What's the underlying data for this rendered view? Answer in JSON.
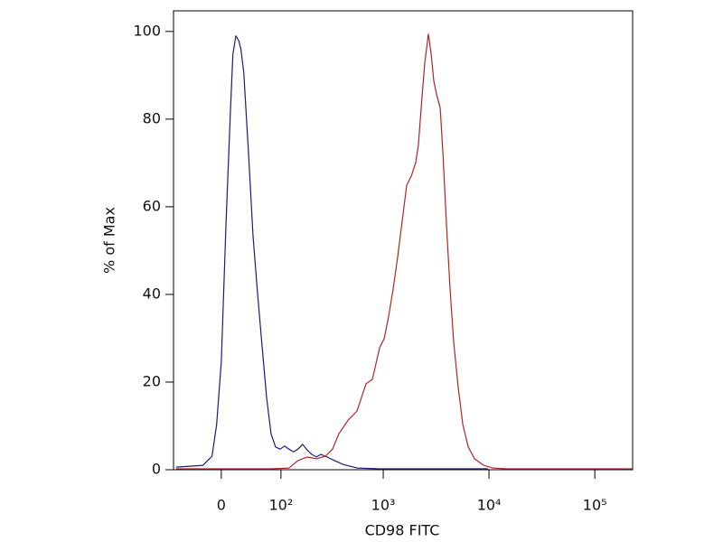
{
  "chart_data": {
    "type": "line",
    "xlabel": "CD98 FITC",
    "ylabel": "% of Max",
    "xscale": "biexponential",
    "xlim": [
      -73,
      227700
    ],
    "ylim": [
      0,
      104.7
    ],
    "xticks": [
      0,
      {
        "value": 100,
        "label": "10²"
      },
      {
        "value": 1000,
        "label": "10³"
      },
      {
        "value": 10000,
        "label": "10⁴"
      },
      {
        "value": 100000,
        "label": "10⁵"
      }
    ],
    "yticks": [
      0,
      20,
      40,
      60,
      80,
      100
    ],
    "grid": false,
    "series": [
      {
        "color": "#1c1c78",
        "x": [
          -68,
          -44,
          -24,
          -12,
          -6,
          0,
          6,
          12,
          15,
          19,
          23,
          26,
          30,
          37,
          44,
          51,
          59,
          68,
          77,
          87,
          98,
          109,
          122,
          136,
          151,
          168,
          187,
          207,
          230,
          254,
          281,
          343,
          418,
          564,
          924,
          9800
        ],
        "values": [
          0.6,
          0.8,
          1.0,
          3.1,
          10.3,
          24.7,
          55.7,
          82.5,
          94.8,
          99.0,
          97.9,
          95.9,
          90.7,
          72.2,
          53.6,
          41.2,
          28.9,
          16.5,
          8.2,
          5.2,
          4.7,
          5.4,
          4.7,
          4.1,
          4.7,
          5.8,
          4.5,
          3.5,
          2.9,
          3.5,
          3.1,
          2.1,
          1.2,
          0.4,
          0.2,
          0.2
        ]
      },
      {
        "color": "#b22424",
        "x": [
          -68,
          77,
          122,
          151,
          187,
          230,
          281,
          329,
          379,
          463,
          564,
          687,
          788,
          924,
          1020,
          1126,
          1241,
          1370,
          1512,
          1668,
          1841,
          2030,
          2154,
          2284,
          2472,
          2675,
          2838,
          3009,
          3198,
          3457,
          3670,
          3971,
          4289,
          4643,
          5121,
          5658,
          6366,
          7304,
          8897,
          10832,
          14549,
          227700
        ],
        "values": [
          0.2,
          0.2,
          0.4,
          2.1,
          2.9,
          2.5,
          3.1,
          4.7,
          8.2,
          11.3,
          13.4,
          19.6,
          20.6,
          27.8,
          29.9,
          35.1,
          41.2,
          48.5,
          56.7,
          64.9,
          67.0,
          70.1,
          74.2,
          82.5,
          92.8,
          99.4,
          94.8,
          88.7,
          85.6,
          82.5,
          72.2,
          55.7,
          41.2,
          28.9,
          18.6,
          10.3,
          5.2,
          2.5,
          1.0,
          0.4,
          0.2,
          0.2
        ]
      }
    ]
  }
}
